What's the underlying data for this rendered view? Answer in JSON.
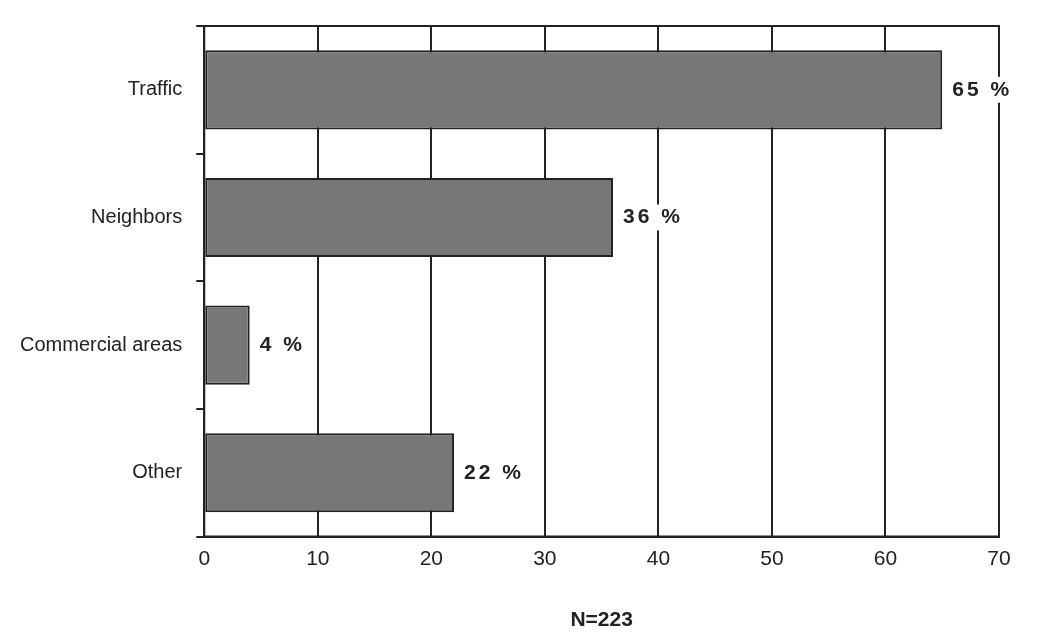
{
  "chart_data": {
    "type": "bar",
    "orientation": "horizontal",
    "categories": [
      "Traffic",
      "Neighbors",
      "Commercial areas",
      "Other"
    ],
    "values": [
      65,
      36,
      4,
      22
    ],
    "color": "#777777",
    "value_labels": [
      "65 %",
      "36 %",
      "4 %",
      "22 %"
    ],
    "xlabel": "N=223",
    "xlim": [
      0,
      70
    ],
    "xticks": [
      0,
      10,
      20,
      30,
      40,
      50,
      60,
      70
    ],
    "grid": "x",
    "legend": false
  }
}
